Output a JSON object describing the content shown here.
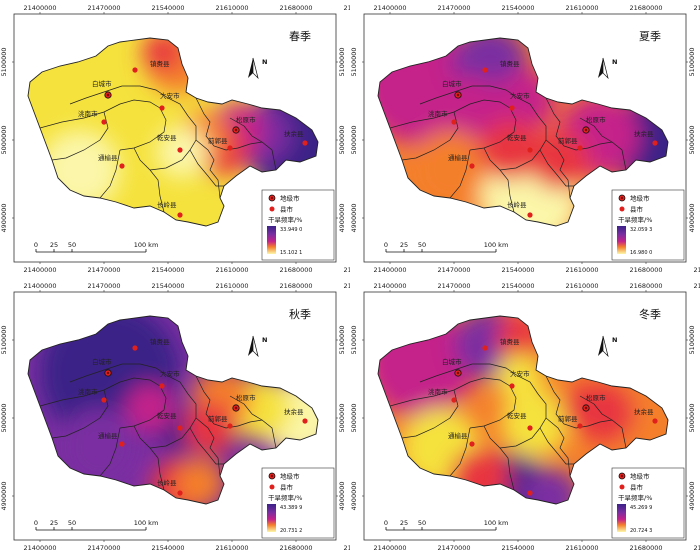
{
  "x_ticks": [
    "21400000",
    "21470000",
    "21540000",
    "21610000",
    "21680000",
    "21750000"
  ],
  "y_ticks": [
    "5100000",
    "5000000",
    "4900000"
  ],
  "legend": {
    "city_label": "地级市",
    "county_label": "县市",
    "freq_label": "干旱频率/%"
  },
  "scale": {
    "ticks": [
      "0",
      "25",
      "50",
      "100 km"
    ]
  },
  "north": "N",
  "places": [
    {
      "name": "镇赉县",
      "type": "county"
    },
    {
      "name": "白城市",
      "type": "city"
    },
    {
      "name": "大安市",
      "type": "county"
    },
    {
      "name": "洮南市",
      "type": "county"
    },
    {
      "name": "松原市",
      "type": "city"
    },
    {
      "name": "乾安县",
      "type": "county"
    },
    {
      "name": "前郭县",
      "type": "county"
    },
    {
      "name": "扶余县",
      "type": "county"
    },
    {
      "name": "通榆县",
      "type": "county"
    },
    {
      "name": "长岭县",
      "type": "county"
    }
  ],
  "panels": [
    {
      "season": "春季",
      "max": "33.949 0",
      "min": "15.102 1",
      "hide_labels": []
    },
    {
      "season": "夏季",
      "max": "32.059 3",
      "min": "16.980 0",
      "hide_labels": []
    },
    {
      "season": "秋季",
      "max": "43.389 9",
      "min": "20.731 2",
      "hide_labels": []
    },
    {
      "season": "冬季",
      "max": "45.269 9",
      "min": "20.724 3",
      "hide_labels": [
        "长岭县"
      ]
    }
  ],
  "colors": {
    "high": "#3b2287",
    "mid_purple": "#7a2ea1",
    "magenta": "#c5218a",
    "red": "#e8343f",
    "orange": "#f47f2c",
    "yellow": "#f5e23d",
    "pale": "#fbf6a9"
  }
}
